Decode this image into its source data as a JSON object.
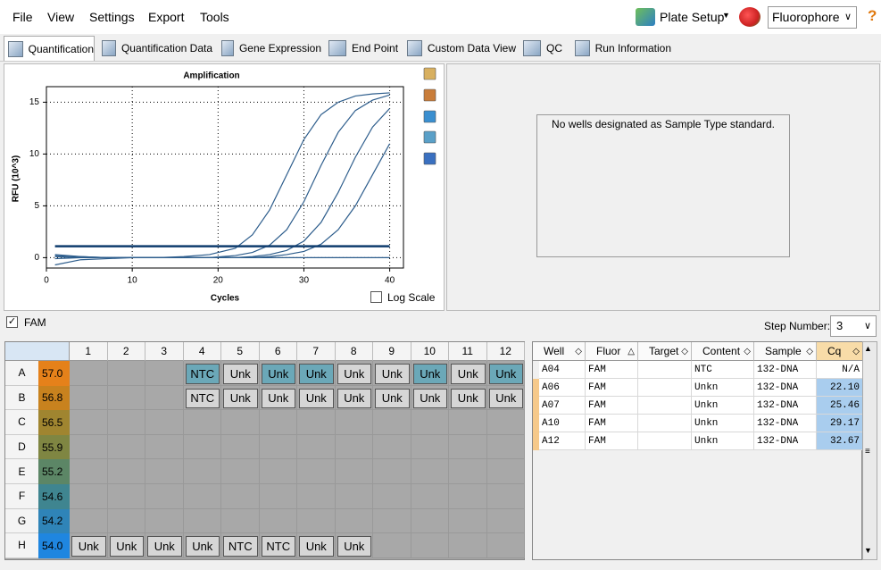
{
  "menu": [
    "File",
    "View",
    "Settings",
    "Export",
    "Tools"
  ],
  "toolbar": {
    "plate_setup": "Plate Setup",
    "fluorophore": "Fluorophore",
    "help": "?"
  },
  "tabs": [
    "Quantification",
    "Quantification Data",
    "Gene Expression",
    "End Point",
    "Custom Data View",
    "QC",
    "Run Information"
  ],
  "chart_data": {
    "type": "line",
    "title": "Amplification",
    "x_label": "Cycles",
    "y_label": "RFU (10^3)",
    "x": [
      1,
      4,
      7,
      10,
      13,
      16,
      19,
      22,
      24,
      26,
      28,
      30,
      32,
      34,
      36,
      38,
      40
    ],
    "series": [
      {
        "color": "#2d5d8c",
        "values": [
          0.3,
          0.1,
          0.0,
          0.0,
          0.0,
          0.1,
          0.3,
          0.9,
          2.2,
          4.6,
          8.0,
          11.4,
          13.8,
          15.0,
          15.6,
          15.8,
          15.9
        ]
      },
      {
        "color": "#2d5d8c",
        "values": [
          0.2,
          0.1,
          0.0,
          0.0,
          0.0,
          0.0,
          0.0,
          0.2,
          0.5,
          1.2,
          2.7,
          5.4,
          8.9,
          12.1,
          14.2,
          15.2,
          15.7
        ]
      },
      {
        "color": "#2d5d8c",
        "values": [
          -0.1,
          0.0,
          0.0,
          0.0,
          0.0,
          0.0,
          0.0,
          0.0,
          0.1,
          0.3,
          0.7,
          1.6,
          3.4,
          6.3,
          9.7,
          12.6,
          14.4
        ]
      },
      {
        "color": "#2d5d8c",
        "values": [
          0.1,
          0.0,
          0.0,
          0.0,
          0.0,
          0.0,
          0.0,
          0.0,
          0.0,
          0.1,
          0.3,
          0.6,
          1.3,
          2.7,
          5.0,
          8.0,
          11.0
        ]
      },
      {
        "color": "#2d5d8c",
        "values": [
          -0.7,
          -0.2,
          -0.1,
          0.0,
          0.0,
          0.0,
          0.0,
          0.0,
          0.0,
          0.0,
          0.0,
          0.0,
          0.0,
          0.0,
          0.0,
          0.0,
          0.0
        ]
      }
    ],
    "threshold": 1.1,
    "threshold_color": "#0f3c6e",
    "xlim": [
      0,
      41.6
    ],
    "ylim": [
      -1,
      16.5
    ],
    "xticks": [
      0,
      10,
      20,
      30,
      40
    ],
    "yticks": [
      0,
      5,
      10,
      15
    ],
    "grid": true
  },
  "log_scale": "Log Scale",
  "standard_message": "No wells designated as Sample Type standard.",
  "fluor_checkbox": "FAM",
  "step_number": {
    "label": "Step Number:",
    "value": "3"
  },
  "plate": {
    "columns": [
      "1",
      "2",
      "3",
      "4",
      "5",
      "6",
      "7",
      "8",
      "9",
      "10",
      "11",
      "12"
    ],
    "rows": [
      {
        "label": "A",
        "temperature": "57.0",
        "color": "#e5811a",
        "selected": [
          3,
          5,
          6,
          9,
          11
        ],
        "wells": [
          null,
          null,
          null,
          "NTC",
          "Unk",
          "Unk",
          "Unk",
          "Unk",
          "Unk",
          "Unk",
          "Unk",
          "Unk"
        ]
      },
      {
        "label": "B",
        "temperature": "56.8",
        "color": "#c8821e",
        "selected": [],
        "wells": [
          null,
          null,
          null,
          "NTC",
          "Unk",
          "Unk",
          "Unk",
          "Unk",
          "Unk",
          "Unk",
          "Unk",
          "Unk"
        ]
      },
      {
        "label": "C",
        "temperature": "56.5",
        "color": "#a08530",
        "selected": [],
        "wells": [
          null,
          null,
          null,
          null,
          null,
          null,
          null,
          null,
          null,
          null,
          null,
          null
        ]
      },
      {
        "label": "D",
        "temperature": "55.9",
        "color": "#7f8642",
        "selected": [],
        "wells": [
          null,
          null,
          null,
          null,
          null,
          null,
          null,
          null,
          null,
          null,
          null,
          null
        ]
      },
      {
        "label": "E",
        "temperature": "55.2",
        "color": "#5c8666",
        "selected": [],
        "wells": [
          null,
          null,
          null,
          null,
          null,
          null,
          null,
          null,
          null,
          null,
          null,
          null
        ]
      },
      {
        "label": "F",
        "temperature": "54.6",
        "color": "#3f8590",
        "selected": [],
        "wells": [
          null,
          null,
          null,
          null,
          null,
          null,
          null,
          null,
          null,
          null,
          null,
          null
        ]
      },
      {
        "label": "G",
        "temperature": "54.2",
        "color": "#2f84b8",
        "selected": [],
        "wells": [
          null,
          null,
          null,
          null,
          null,
          null,
          null,
          null,
          null,
          null,
          null,
          null
        ]
      },
      {
        "label": "H",
        "temperature": "54.0",
        "color": "#1f86e0",
        "selected": [],
        "wells": [
          "Unk",
          "Unk",
          "Unk",
          "Unk",
          "NTC",
          "NTC",
          "Unk",
          "Unk",
          null,
          null,
          null,
          null
        ]
      }
    ]
  },
  "table": {
    "headers": [
      "Well",
      "Fluor",
      "Target",
      "Content",
      "Sample",
      "Cq"
    ],
    "rows": [
      [
        "A04",
        "FAM",
        "",
        "NTC",
        "132-DNA",
        "N/A"
      ],
      [
        "A06",
        "FAM",
        "",
        "Unkn",
        "132-DNA",
        "22.10"
      ],
      [
        "A07",
        "FAM",
        "",
        "Unkn",
        "132-DNA",
        "25.46"
      ],
      [
        "A10",
        "FAM",
        "",
        "Unkn",
        "132-DNA",
        "29.17"
      ],
      [
        "A12",
        "FAM",
        "",
        "Unkn",
        "132-DNA",
        "32.67"
      ]
    ]
  }
}
